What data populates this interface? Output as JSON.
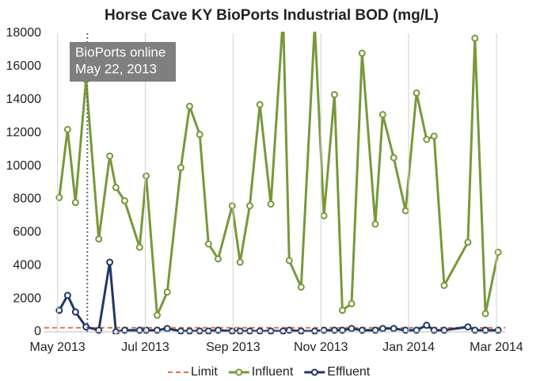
{
  "chart_data": {
    "type": "line",
    "title": "Horse Cave KY BioPorts Industrial BOD (mg/L)",
    "xlim": [
      -0.3,
      10.2
    ],
    "xticks": [
      {
        "value": 0,
        "label": "May 2013"
      },
      {
        "value": 2,
        "label": "Jul 2013"
      },
      {
        "value": 4,
        "label": "Sep 2013"
      },
      {
        "value": 6,
        "label": "Nov 2013"
      },
      {
        "value": 8,
        "label": "Jan 2014"
      },
      {
        "value": 10,
        "label": "Mar 2014"
      }
    ],
    "ylim": [
      0,
      18000
    ],
    "yticks": [
      0,
      2000,
      4000,
      6000,
      8000,
      10000,
      12000,
      14000,
      16000,
      18000
    ],
    "grid": "x",
    "legend": "bottom",
    "annotation": {
      "lines": [
        "BioPorts online",
        "May 22, 2013"
      ],
      "x": 0.68
    },
    "series": [
      {
        "name": "Limit",
        "color": "#e8704a",
        "dashed": true,
        "markers": false,
        "x": [
          -0.3,
          10.2
        ],
        "values": [
          250,
          250
        ]
      },
      {
        "name": "Influent",
        "color": "#77993a",
        "markers": true,
        "x": [
          0.04,
          0.23,
          0.41,
          0.65,
          0.94,
          1.19,
          1.33,
          1.53,
          1.87,
          2.02,
          2.27,
          2.5,
          2.81,
          3.01,
          3.24,
          3.44,
          3.66,
          3.98,
          4.16,
          4.38,
          4.61,
          4.86,
          5.14,
          5.28,
          5.55,
          5.86,
          6.07,
          6.31,
          6.49,
          6.7,
          6.94,
          7.24,
          7.41,
          7.66,
          7.93,
          8.18,
          8.41,
          8.58,
          8.81,
          9.35,
          9.51,
          9.75,
          10.04
        ],
        "values": [
          8100,
          12200,
          7800,
          15200,
          5600,
          10600,
          8700,
          7900,
          5100,
          9400,
          1000,
          2400,
          9900,
          13600,
          11900,
          5300,
          4400,
          7600,
          4200,
          7600,
          13700,
          7700,
          19000,
          4300,
          2700,
          18500,
          7000,
          14300,
          1300,
          1700,
          16800,
          6500,
          13100,
          10500,
          7300,
          14400,
          11600,
          11800,
          2800,
          5400,
          17700,
          1100,
          4800
        ]
      },
      {
        "name": "Effluent",
        "color": "#1f3864",
        "markers": true,
        "x": [
          0.04,
          0.23,
          0.41,
          0.65,
          0.94,
          1.19,
          1.33,
          1.53,
          1.87,
          2.02,
          2.27,
          2.5,
          2.81,
          3.01,
          3.24,
          3.44,
          3.66,
          3.98,
          4.16,
          4.38,
          4.61,
          4.86,
          5.14,
          5.28,
          5.55,
          5.86,
          6.07,
          6.31,
          6.49,
          6.7,
          6.94,
          7.24,
          7.41,
          7.66,
          7.93,
          8.18,
          8.41,
          8.58,
          8.81,
          9.35,
          9.51,
          9.75,
          10.04
        ],
        "values": [
          1300,
          2200,
          1200,
          300,
          100,
          4200,
          0,
          100,
          100,
          100,
          100,
          200,
          50,
          50,
          50,
          50,
          100,
          50,
          50,
          50,
          50,
          50,
          50,
          100,
          50,
          50,
          100,
          100,
          100,
          200,
          100,
          100,
          200,
          200,
          100,
          100,
          400,
          100,
          100,
          300,
          100,
          100,
          100
        ]
      }
    ]
  }
}
